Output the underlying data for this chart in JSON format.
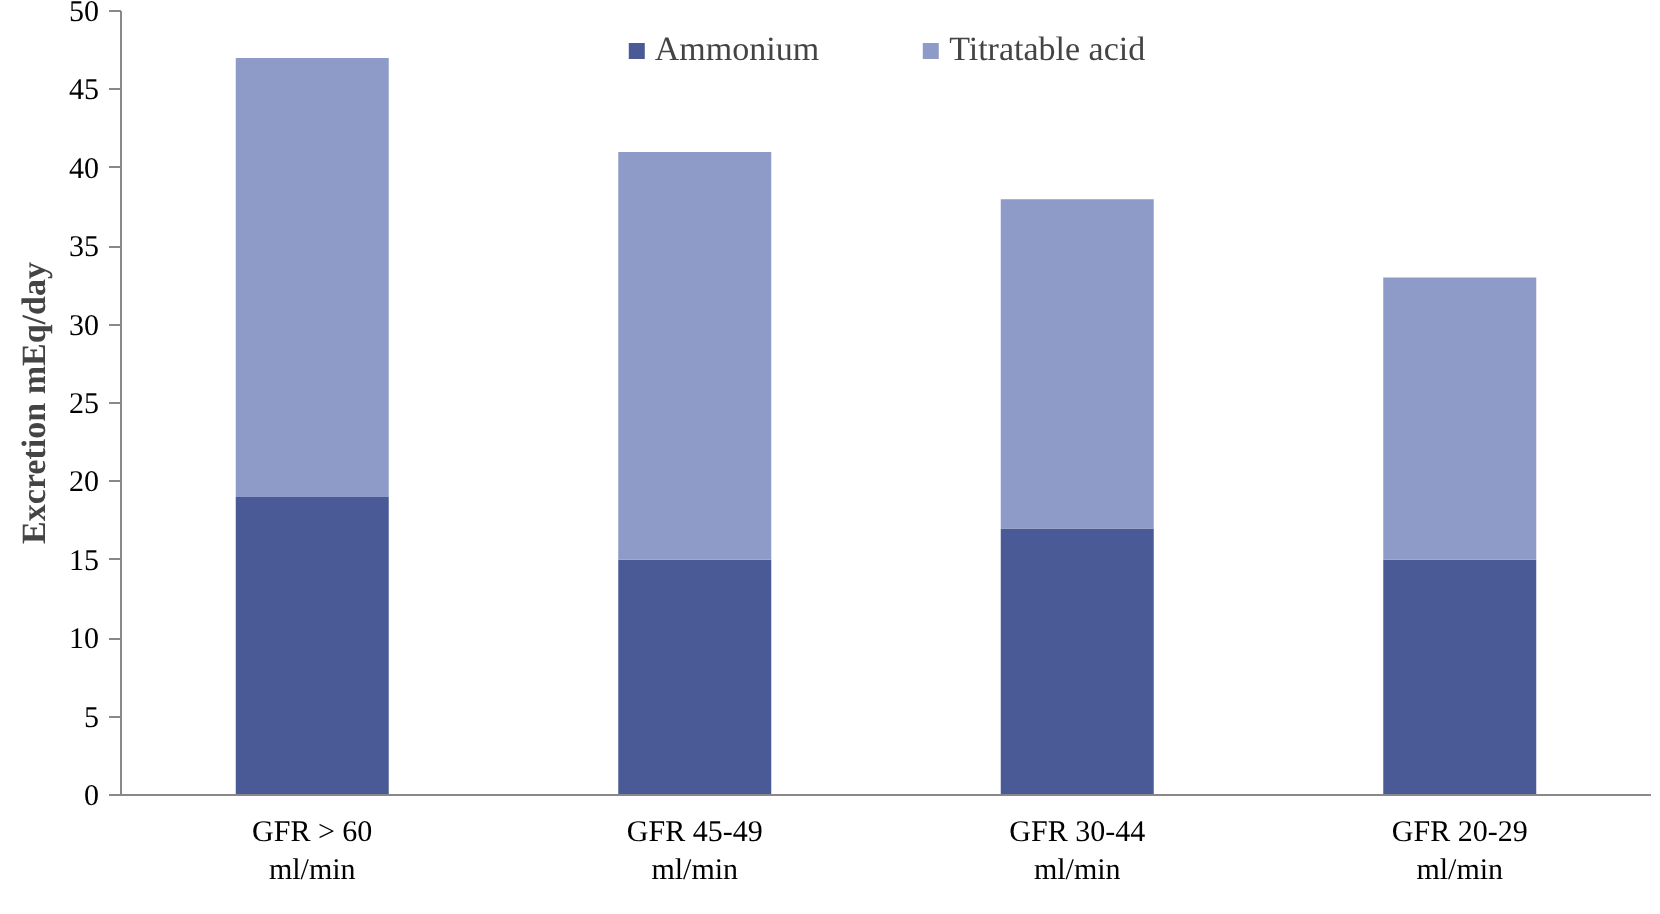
{
  "chart_data": {
    "type": "bar",
    "stacked": true,
    "ylabel": "Excretion mEq/day",
    "categories": [
      "GFR > 60\nml/min",
      "GFR 45-49\nml/min",
      "GFR 30-44\nml/min",
      "GFR 20-29\nml/min"
    ],
    "series": [
      {
        "name": "Ammonium",
        "color": "#4a5a96",
        "values": [
          19,
          15,
          17,
          15
        ]
      },
      {
        "name": "Titratable acid",
        "color": "#8e9bc8",
        "values": [
          28,
          26,
          21,
          18
        ]
      }
    ],
    "ylim": [
      0,
      50
    ],
    "yticks": [
      0,
      5,
      10,
      15,
      20,
      25,
      30,
      35,
      40,
      45,
      50
    ],
    "grid": false,
    "legend": "top"
  }
}
